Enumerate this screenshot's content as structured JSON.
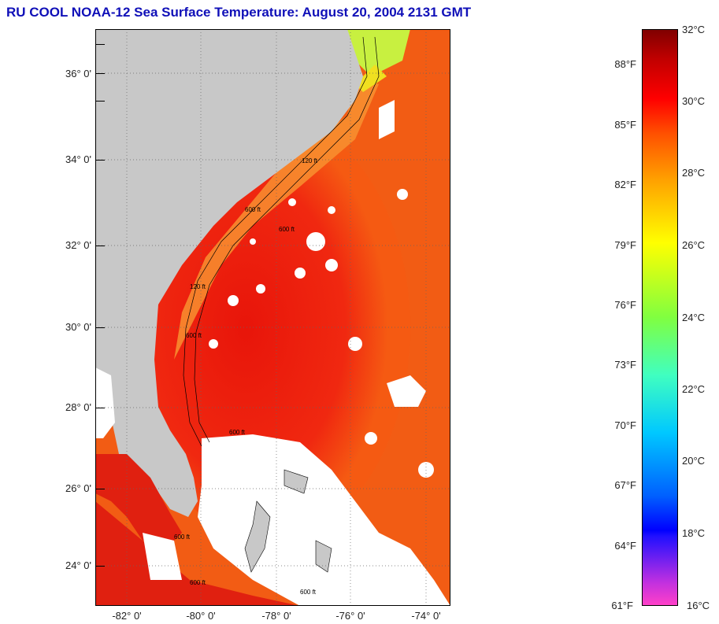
{
  "title": "RU COOL  NOAA-12  Sea Surface Temperature:  August 20, 2004 2131 GMT",
  "map": {
    "lat_labels": [
      "36° 0'",
      "34° 0'",
      "32° 0'",
      "30° 0'",
      "28° 0'",
      "26° 0'",
      "24° 0'"
    ],
    "lon_labels": [
      "-82° 0'",
      "-80° 0'",
      "-78° 0'",
      "-76° 0'",
      "-74° 0'"
    ],
    "isobath_labels": [
      "600 ft",
      "120 ft",
      "600 ft",
      "120 ft",
      "600 ft",
      "600 ft",
      "600 ft",
      "600 ft",
      "600 ft"
    ],
    "land_color": "#c8c8c8",
    "cloud_color": "#ffffff"
  },
  "colorbar": {
    "fahrenheit_labels": [
      "88°F",
      "85°F",
      "82°F",
      "79°F",
      "76°F",
      "73°F",
      "70°F",
      "67°F",
      "64°F",
      "61°F"
    ],
    "celsius_labels": [
      "32°C",
      "30°C",
      "28°C",
      "26°C",
      "24°C",
      "22°C",
      "20°C",
      "18°C",
      "16°C"
    ],
    "range_c": [
      16,
      32
    ],
    "colors": [
      "#ff40c8",
      "#a020f0",
      "#0000ff",
      "#00c8ff",
      "#40ffa0",
      "#ffff00",
      "#ff8000",
      "#ff0000",
      "#800000"
    ]
  }
}
